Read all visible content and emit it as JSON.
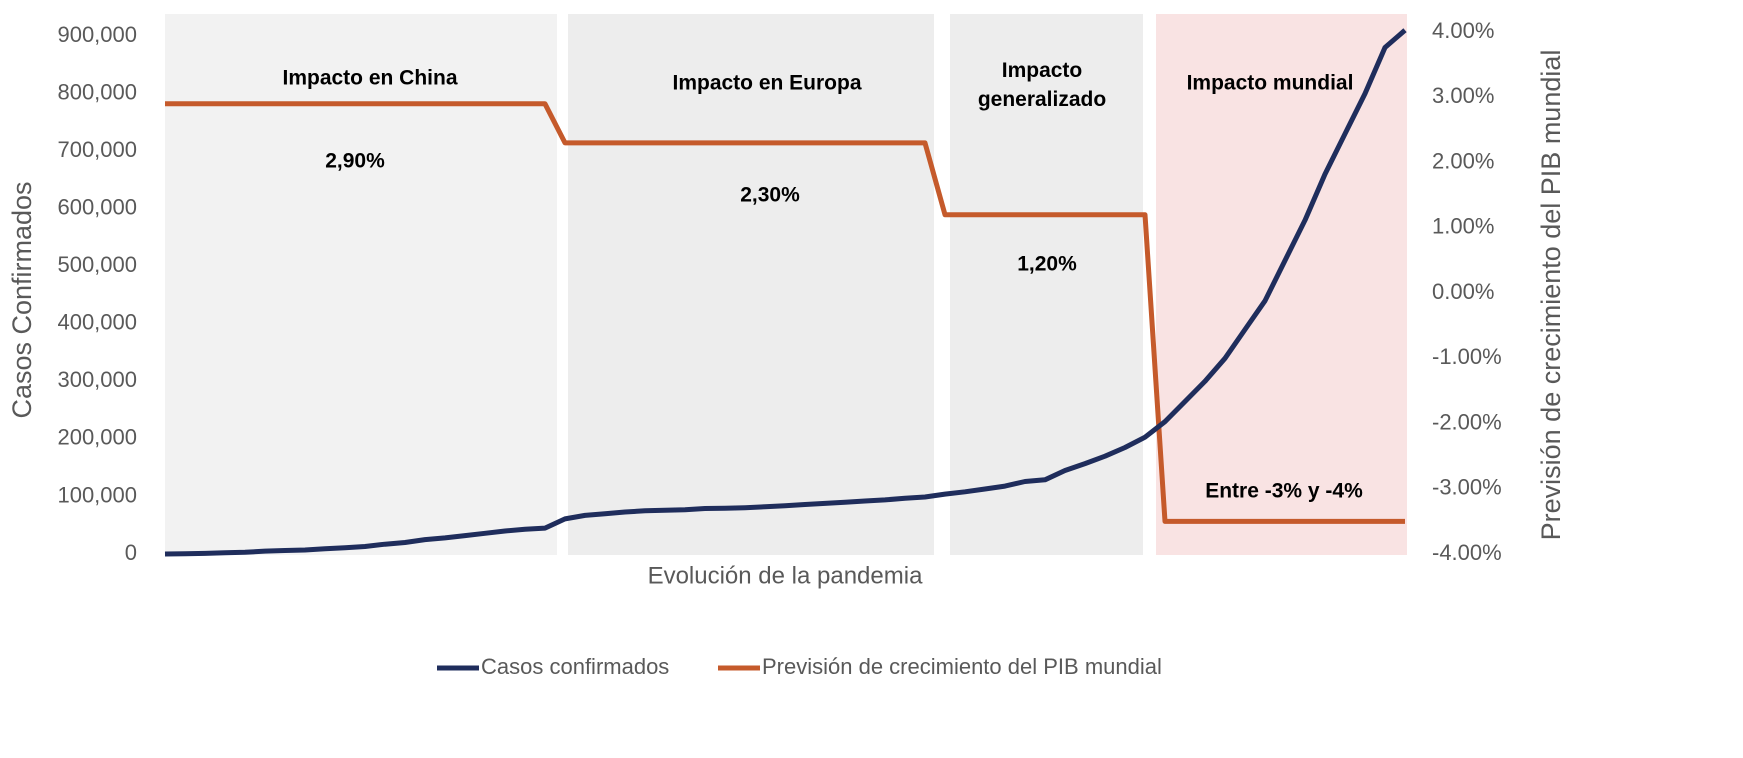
{
  "chart_data": {
    "type": "line",
    "xlabel": "Evolución de la pandemia",
    "ylabel": "Casos Confirmados",
    "y2label": "Previsión de crecimiento del PIB mundial",
    "categories": [
      null,
      null,
      null,
      null,
      null,
      null,
      null,
      null,
      null,
      null,
      null,
      null,
      null,
      null,
      null,
      null,
      null,
      null,
      null,
      null,
      null,
      null,
      null,
      null,
      null,
      null,
      null,
      null,
      null,
      null,
      null,
      null,
      null,
      null,
      null,
      null,
      null,
      null,
      null,
      null,
      null,
      null,
      null,
      null,
      null,
      null,
      null,
      null,
      null,
      null,
      null,
      null,
      null,
      null,
      null,
      null,
      null,
      null,
      null,
      null,
      null,
      null,
      null
    ],
    "series": [
      {
        "name": "Casos confirmados",
        "color": "#1f2d5c",
        "axis": "y",
        "values": [
          0,
          500,
          1000,
          2000,
          3000,
          5000,
          6000,
          7000,
          9000,
          11000,
          13000,
          17000,
          20000,
          25000,
          28000,
          32000,
          36000,
          40000,
          43000,
          45000,
          61000,
          67000,
          70000,
          73000,
          75000,
          76000,
          77000,
          79000,
          79500,
          80500,
          82000,
          84000,
          86000,
          88000,
          90000,
          92000,
          94000,
          97000,
          99000,
          104000,
          108000,
          113000,
          118000,
          126000,
          129000,
          145000,
          157000,
          170000,
          185000,
          203000,
          230000,
          265000,
          300000,
          340000,
          390000,
          440000,
          510000,
          580000,
          660000,
          730000,
          800000,
          880000,
          910000
        ]
      },
      {
        "name": "Previsión de crecimiento del PIB mundial",
        "color": "#c55a2b",
        "axis": "y2",
        "values": [
          2.9,
          2.9,
          2.9,
          2.9,
          2.9,
          2.9,
          2.9,
          2.9,
          2.9,
          2.9,
          2.9,
          2.9,
          2.9,
          2.9,
          2.9,
          2.9,
          2.9,
          2.9,
          2.9,
          2.9,
          2.3,
          2.3,
          2.3,
          2.3,
          2.3,
          2.3,
          2.3,
          2.3,
          2.3,
          2.3,
          2.3,
          2.3,
          2.3,
          2.3,
          2.3,
          2.3,
          2.3,
          2.3,
          2.3,
          1.2,
          1.2,
          1.2,
          1.2,
          1.2,
          1.2,
          1.2,
          1.2,
          1.2,
          1.2,
          1.2,
          -3.5,
          -3.5,
          -3.5,
          -3.5,
          -3.5,
          -3.5,
          -3.5,
          -3.5,
          -3.5,
          -3.5,
          -3.5,
          -3.5,
          -3.5
        ]
      }
    ],
    "annotations": [
      "Impacto en China",
      "2,90%",
      "Impacto en Europa",
      "2,30%",
      "Impacto generalizado",
      "1,20%",
      "Impacto mundial",
      "Entre -3% y -4%"
    ],
    "ylim": [
      0,
      900000
    ],
    "yticks": [
      0,
      {
        "value": 100000,
        "label": "100,000"
      },
      {
        "value": 200000,
        "label": "200,000"
      },
      {
        "value": 300000,
        "label": "300,000"
      },
      {
        "value": 400000,
        "label": "400,000"
      },
      {
        "value": 500000,
        "label": "500,000"
      },
      {
        "value": 600000,
        "label": "600,000"
      },
      {
        "value": 700000,
        "label": "700,000"
      },
      {
        "value": 800000,
        "label": "800,000"
      },
      {
        "value": 900000,
        "label": "900,000"
      }
    ],
    "y2lim": [
      -4,
      4
    ],
    "y2ticks": [
      {
        "value": 4,
        "label": "4.00%"
      },
      {
        "value": 3,
        "label": "3.00%"
      },
      {
        "value": 2,
        "label": "2.00%"
      },
      {
        "value": 1,
        "label": "1.00%"
      },
      {
        "value": 0,
        "label": "0.00%"
      },
      {
        "value": -1,
        "label": "-1.00%"
      },
      {
        "value": -2,
        "label": "-2.00%"
      },
      {
        "value": -3,
        "label": "-3.00%"
      },
      {
        "value": -4,
        "label": "-4.00%"
      }
    ],
    "legend": "bottom"
  }
}
